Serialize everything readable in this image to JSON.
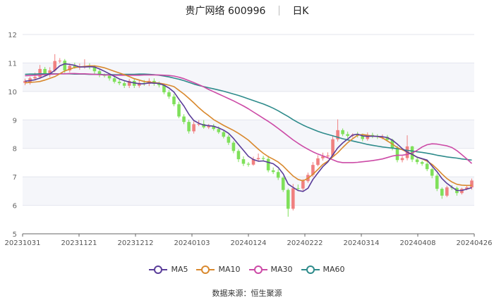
{
  "title": {
    "name": "贵广网络 600996",
    "period": "日K"
  },
  "source_label": "数据来源：恒生聚源",
  "colors": {
    "up": "#f08080",
    "down": "#7fe05a",
    "MA5": "#5a3d99",
    "MA10": "#d9892e",
    "MA30": "#cc4aa6",
    "MA60": "#2e8b8b"
  },
  "chart_data": {
    "type": "candlestick",
    "ylim": [
      5,
      12
    ],
    "y_ticks": [
      5,
      6,
      7,
      8,
      9,
      10,
      11,
      12
    ],
    "x_ticks": [
      "20231031",
      "20231121",
      "20231212",
      "20240103",
      "20240124",
      "20240222",
      "20240314",
      "20240408",
      "20240426"
    ],
    "legend": [
      "MA5",
      "MA10",
      "MA30",
      "MA60"
    ],
    "legend_position": "bottom",
    "close": [
      10.37,
      10.46,
      10.51,
      10.79,
      10.59,
      10.74,
      11.07,
      11.08,
      10.74,
      10.9,
      10.85,
      10.87,
      10.88,
      10.87,
      10.71,
      10.58,
      10.55,
      10.46,
      10.34,
      10.29,
      10.2,
      10.37,
      10.2,
      10.3,
      10.27,
      10.37,
      10.27,
      10.22,
      9.97,
      9.82,
      9.55,
      9.12,
      8.93,
      8.6,
      8.85,
      8.86,
      8.74,
      8.79,
      8.68,
      8.57,
      8.41,
      8.2,
      7.91,
      7.62,
      7.46,
      7.43,
      7.62,
      7.66,
      7.63,
      7.23,
      7.17,
      6.97,
      6.54,
      5.88,
      6.6,
      6.59,
      6.85,
      7.07,
      7.42,
      7.65,
      7.72,
      7.75,
      8.32,
      8.64,
      8.5,
      8.44,
      8.48,
      8.45,
      8.33,
      8.47,
      8.43,
      8.4,
      8.4,
      8.3,
      8.01,
      7.59,
      7.66,
      8.07,
      7.61,
      7.52,
      7.46,
      7.27,
      7.04,
      6.58,
      6.34,
      6.63,
      6.61,
      6.43,
      6.58,
      6.63,
      6.87
    ],
    "open": [
      10.3,
      10.3,
      10.46,
      10.51,
      10.79,
      10.59,
      10.74,
      11.07,
      11.08,
      10.74,
      10.9,
      10.85,
      10.87,
      10.88,
      10.87,
      10.71,
      10.58,
      10.55,
      10.46,
      10.34,
      10.29,
      10.2,
      10.37,
      10.2,
      10.3,
      10.27,
      10.37,
      10.27,
      10.22,
      9.97,
      9.82,
      9.55,
      9.12,
      8.93,
      8.6,
      8.85,
      8.86,
      8.74,
      8.79,
      8.68,
      8.57,
      8.41,
      8.2,
      7.91,
      7.62,
      7.46,
      7.43,
      7.62,
      7.66,
      7.63,
      7.23,
      7.17,
      6.97,
      6.54,
      5.88,
      6.6,
      6.59,
      6.85,
      7.07,
      7.42,
      7.65,
      7.72,
      7.75,
      8.32,
      8.64,
      8.5,
      8.44,
      8.48,
      8.45,
      8.33,
      8.47,
      8.43,
      8.4,
      8.4,
      8.3,
      8.01,
      7.59,
      7.66,
      8.07,
      7.61,
      7.52,
      7.46,
      7.27,
      7.04,
      6.58,
      6.34,
      6.63,
      6.61,
      6.43,
      6.58,
      6.63
    ],
    "high": [
      10.45,
      10.52,
      10.66,
      10.93,
      10.86,
      10.85,
      11.31,
      11.17,
      11.14,
      10.98,
      11.01,
      10.98,
      11.13,
      10.99,
      10.92,
      10.77,
      10.63,
      10.6,
      10.53,
      10.42,
      10.37,
      10.44,
      10.44,
      10.38,
      10.4,
      10.46,
      10.46,
      10.35,
      10.27,
      10.05,
      9.91,
      9.64,
      9.2,
      9.01,
      8.95,
      8.99,
      8.99,
      8.86,
      8.86,
      8.77,
      8.62,
      8.48,
      8.26,
      7.97,
      7.72,
      7.52,
      7.71,
      7.82,
      7.74,
      7.74,
      7.33,
      7.27,
      7.02,
      6.59,
      6.75,
      6.73,
      6.92,
      7.15,
      7.52,
      7.76,
      7.85,
      7.86,
      8.46,
      9.02,
      8.7,
      8.59,
      8.53,
      8.58,
      8.52,
      8.56,
      8.55,
      8.5,
      8.49,
      8.47,
      8.34,
      8.09,
      7.73,
      8.46,
      8.09,
      7.68,
      7.57,
      7.51,
      7.32,
      7.11,
      6.63,
      6.69,
      6.71,
      6.66,
      6.62,
      6.7,
      6.94
    ],
    "low": [
      10.22,
      10.24,
      10.39,
      10.44,
      10.53,
      10.5,
      10.68,
      10.99,
      10.65,
      10.67,
      10.8,
      10.76,
      10.8,
      10.78,
      10.62,
      10.5,
      10.49,
      10.38,
      10.28,
      10.22,
      10.12,
      10.12,
      10.12,
      10.13,
      10.2,
      10.19,
      10.2,
      10.14,
      9.9,
      9.74,
      9.48,
      9.06,
      8.85,
      8.52,
      8.52,
      8.78,
      8.69,
      8.68,
      8.62,
      8.51,
      8.35,
      8.12,
      7.83,
      7.52,
      7.38,
      7.36,
      7.39,
      7.56,
      7.55,
      7.16,
      7.1,
      6.89,
      6.47,
      5.6,
      5.82,
      6.5,
      6.52,
      6.79,
      7.0,
      7.37,
      7.57,
      7.66,
      7.69,
      8.24,
      8.43,
      8.37,
      8.38,
      8.38,
      8.25,
      8.27,
      8.36,
      8.33,
      8.32,
      8.24,
      7.93,
      7.51,
      7.51,
      7.58,
      7.52,
      7.44,
      7.39,
      7.2,
      6.95,
      6.5,
      6.23,
      6.29,
      6.54,
      6.34,
      6.38,
      6.53,
      6.55
    ],
    "ma5": [
      10.36,
      10.38,
      10.41,
      10.47,
      10.54,
      10.62,
      10.74,
      10.9,
      10.97,
      10.95,
      10.92,
      10.86,
      10.86,
      10.87,
      10.86,
      10.79,
      10.71,
      10.62,
      10.53,
      10.44,
      10.38,
      10.33,
      10.3,
      10.27,
      10.27,
      10.3,
      10.29,
      10.28,
      10.22,
      10.12,
      9.98,
      9.73,
      9.49,
      9.2,
      8.98,
      8.88,
      8.82,
      8.8,
      8.78,
      8.72,
      8.64,
      8.53,
      8.35,
      8.14,
      7.93,
      7.72,
      7.61,
      7.55,
      7.56,
      7.51,
      7.46,
      7.33,
      7.11,
      6.75,
      6.63,
      6.52,
      6.49,
      6.6,
      6.91,
      7.14,
      7.36,
      7.52,
      7.77,
      8.02,
      8.19,
      8.33,
      8.47,
      8.5,
      8.44,
      8.42,
      8.43,
      8.42,
      8.41,
      8.38,
      8.29,
      8.15,
      7.99,
      7.87,
      7.79,
      7.69,
      7.64,
      7.59,
      7.38,
      7.18,
      6.94,
      6.77,
      6.64,
      6.52,
      6.52,
      6.57,
      6.62
    ],
    "ma10": [
      10.3,
      10.32,
      10.33,
      10.35,
      10.4,
      10.46,
      10.52,
      10.62,
      10.72,
      10.78,
      10.84,
      10.86,
      10.88,
      10.9,
      10.9,
      10.87,
      10.83,
      10.77,
      10.71,
      10.65,
      10.59,
      10.52,
      10.45,
      10.4,
      10.35,
      10.33,
      10.31,
      10.29,
      10.26,
      10.22,
      10.17,
      10.04,
      9.91,
      9.76,
      9.6,
      9.43,
      9.28,
      9.15,
      9.01,
      8.91,
      8.81,
      8.72,
      8.63,
      8.53,
      8.41,
      8.29,
      8.13,
      7.97,
      7.83,
      7.71,
      7.62,
      7.52,
      7.38,
      7.2,
      7.03,
      6.91,
      6.86,
      6.95,
      7.09,
      7.26,
      7.44,
      7.55,
      7.7,
      7.85,
      8.03,
      8.2,
      8.34,
      8.46,
      8.49,
      8.46,
      8.43,
      8.42,
      8.37,
      8.26,
      8.15,
      8.03,
      7.95,
      7.87,
      7.78,
      7.69,
      7.63,
      7.55,
      7.44,
      7.28,
      7.1,
      6.94,
      6.82,
      6.74,
      6.71,
      6.7,
      6.7
    ],
    "ma30": [
      10.55,
      10.56,
      10.57,
      10.58,
      10.59,
      10.6,
      10.61,
      10.62,
      10.62,
      10.63,
      10.63,
      10.62,
      10.62,
      10.61,
      10.6,
      10.59,
      10.58,
      10.58,
      10.57,
      10.57,
      10.57,
      10.57,
      10.57,
      10.57,
      10.58,
      10.58,
      10.58,
      10.58,
      10.57,
      10.56,
      10.54,
      10.5,
      10.45,
      10.38,
      10.31,
      10.24,
      10.16,
      10.07,
      9.99,
      9.91,
      9.83,
      9.75,
      9.67,
      9.58,
      9.49,
      9.39,
      9.28,
      9.17,
      9.06,
      8.95,
      8.83,
      8.7,
      8.57,
      8.43,
      8.3,
      8.18,
      8.07,
      7.97,
      7.88,
      7.8,
      7.74,
      7.67,
      7.6,
      7.53,
      7.5,
      7.5,
      7.5,
      7.51,
      7.53,
      7.55,
      7.57,
      7.6,
      7.63,
      7.68,
      7.73,
      7.76,
      7.76,
      7.79,
      7.84,
      7.93,
      8.05,
      8.13,
      8.16,
      8.15,
      8.12,
      8.09,
      8.03,
      7.92,
      7.78,
      7.63,
      7.47
    ],
    "ma60": [
      10.6,
      10.61,
      10.61,
      10.62,
      10.62,
      10.62,
      10.62,
      10.62,
      10.62,
      10.62,
      10.61,
      10.61,
      10.61,
      10.6,
      10.6,
      10.6,
      10.59,
      10.59,
      10.59,
      10.59,
      10.6,
      10.6,
      10.6,
      10.61,
      10.61,
      10.6,
      10.59,
      10.57,
      10.54,
      10.51,
      10.47,
      10.43,
      10.38,
      10.32,
      10.26,
      10.21,
      10.17,
      10.13,
      10.09,
      10.05,
      10.01,
      9.96,
      9.91,
      9.86,
      9.8,
      9.74,
      9.68,
      9.62,
      9.56,
      9.49,
      9.41,
      9.32,
      9.22,
      9.12,
      9.01,
      8.91,
      8.82,
      8.74,
      8.67,
      8.6,
      8.54,
      8.49,
      8.44,
      8.39,
      8.34,
      8.3,
      8.26,
      8.22,
      8.18,
      8.14,
      8.11,
      8.08,
      8.05,
      8.03,
      8.01,
      7.99,
      7.96,
      7.93,
      7.91,
      7.88,
      7.86,
      7.83,
      7.8,
      7.76,
      7.73,
      7.7,
      7.68,
      7.66,
      7.63,
      7.61,
      7.59
    ]
  }
}
